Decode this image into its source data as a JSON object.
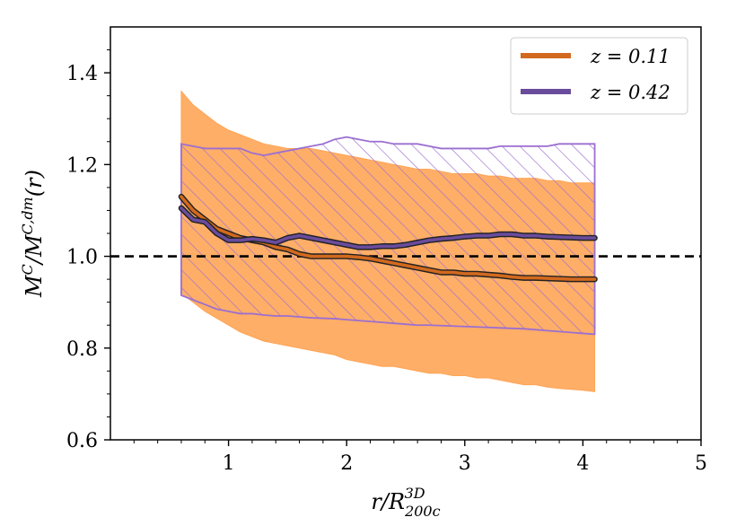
{
  "chart_data": {
    "type": "line",
    "title": "",
    "xlabel": "r/R_200c^3D",
    "ylabel": "M^C/M^C,dm(r)",
    "xlim": [
      0,
      5
    ],
    "ylim": [
      0.6,
      1.5
    ],
    "xticks": [
      {
        "value": 1,
        "label": "1"
      },
      {
        "value": 2,
        "label": "2"
      },
      {
        "value": 3,
        "label": "3"
      },
      {
        "value": 4,
        "label": "4"
      },
      {
        "value": 5,
        "label": "5"
      }
    ],
    "yticks": [
      {
        "value": 0.6,
        "label": "0.6"
      },
      {
        "value": 0.8,
        "label": "0.8"
      },
      {
        "value": 1.0,
        "label": "1.0"
      },
      {
        "value": 1.2,
        "label": "1.2"
      },
      {
        "value": 1.4,
        "label": "1.4"
      }
    ],
    "reference_line": {
      "y": 1.0,
      "style": "dashed",
      "color": "#000000"
    },
    "legend": {
      "position": "top-right"
    },
    "series": [
      {
        "name": "z = 0.11",
        "legend_label": "z = 0.11",
        "color": "#d2691e",
        "fill_color": "#ffa557",
        "band_style": "solid",
        "x": [
          0.6,
          0.7,
          0.8,
          0.9,
          1.0,
          1.1,
          1.2,
          1.3,
          1.4,
          1.5,
          1.6,
          1.7,
          1.8,
          1.9,
          2.0,
          2.1,
          2.2,
          2.3,
          2.4,
          2.5,
          2.6,
          2.7,
          2.8,
          2.9,
          3.0,
          3.1,
          3.2,
          3.3,
          3.4,
          3.5,
          3.6,
          3.7,
          3.8,
          3.9,
          4.0,
          4.1
        ],
        "median": [
          1.13,
          1.1,
          1.08,
          1.06,
          1.05,
          1.04,
          1.035,
          1.03,
          1.02,
          1.015,
          1.005,
          1.0,
          1.0,
          1.0,
          1.0,
          0.998,
          0.995,
          0.99,
          0.985,
          0.98,
          0.975,
          0.97,
          0.965,
          0.965,
          0.962,
          0.962,
          0.96,
          0.958,
          0.955,
          0.953,
          0.953,
          0.952,
          0.951,
          0.95,
          0.95,
          0.95
        ],
        "upper": [
          1.36,
          1.33,
          1.31,
          1.29,
          1.275,
          1.265,
          1.255,
          1.245,
          1.24,
          1.235,
          1.235,
          1.235,
          1.23,
          1.225,
          1.22,
          1.215,
          1.21,
          1.205,
          1.2,
          1.195,
          1.19,
          1.19,
          1.185,
          1.18,
          1.18,
          1.18,
          1.175,
          1.175,
          1.17,
          1.17,
          1.17,
          1.165,
          1.165,
          1.16,
          1.16,
          1.16
        ],
        "lower": [
          0.92,
          0.9,
          0.88,
          0.865,
          0.85,
          0.835,
          0.825,
          0.815,
          0.81,
          0.805,
          0.8,
          0.795,
          0.79,
          0.785,
          0.775,
          0.77,
          0.765,
          0.76,
          0.76,
          0.755,
          0.75,
          0.745,
          0.745,
          0.74,
          0.74,
          0.735,
          0.735,
          0.73,
          0.725,
          0.72,
          0.72,
          0.715,
          0.712,
          0.71,
          0.708,
          0.705
        ]
      },
      {
        "name": "z = 0.42",
        "legend_label": "z = 0.42",
        "color": "#6a4c9c",
        "fill_color": "#9b6fd0",
        "band_style": "hatched",
        "x": [
          0.6,
          0.7,
          0.8,
          0.9,
          1.0,
          1.1,
          1.2,
          1.3,
          1.4,
          1.5,
          1.6,
          1.7,
          1.8,
          1.9,
          2.0,
          2.1,
          2.2,
          2.3,
          2.4,
          2.5,
          2.6,
          2.7,
          2.8,
          2.9,
          3.0,
          3.1,
          3.2,
          3.3,
          3.4,
          3.5,
          3.6,
          3.7,
          3.8,
          3.9,
          4.0,
          4.1
        ],
        "median": [
          1.105,
          1.08,
          1.075,
          1.05,
          1.035,
          1.035,
          1.038,
          1.035,
          1.03,
          1.04,
          1.045,
          1.04,
          1.035,
          1.03,
          1.025,
          1.02,
          1.02,
          1.022,
          1.022,
          1.025,
          1.03,
          1.035,
          1.038,
          1.04,
          1.043,
          1.045,
          1.045,
          1.048,
          1.048,
          1.045,
          1.045,
          1.043,
          1.042,
          1.041,
          1.04,
          1.04
        ],
        "upper": [
          1.245,
          1.24,
          1.235,
          1.235,
          1.235,
          1.235,
          1.225,
          1.22,
          1.225,
          1.23,
          1.235,
          1.24,
          1.245,
          1.255,
          1.26,
          1.255,
          1.25,
          1.25,
          1.245,
          1.245,
          1.245,
          1.24,
          1.235,
          1.235,
          1.235,
          1.235,
          1.235,
          1.24,
          1.24,
          1.24,
          1.24,
          1.24,
          1.245,
          1.245,
          1.245,
          1.245
        ],
        "lower": [
          0.915,
          0.905,
          0.895,
          0.885,
          0.88,
          0.875,
          0.875,
          0.872,
          0.87,
          0.87,
          0.868,
          0.866,
          0.865,
          0.864,
          0.862,
          0.86,
          0.858,
          0.856,
          0.854,
          0.852,
          0.85,
          0.85,
          0.849,
          0.848,
          0.847,
          0.846,
          0.845,
          0.844,
          0.843,
          0.842,
          0.84,
          0.838,
          0.836,
          0.834,
          0.832,
          0.83
        ]
      }
    ]
  }
}
